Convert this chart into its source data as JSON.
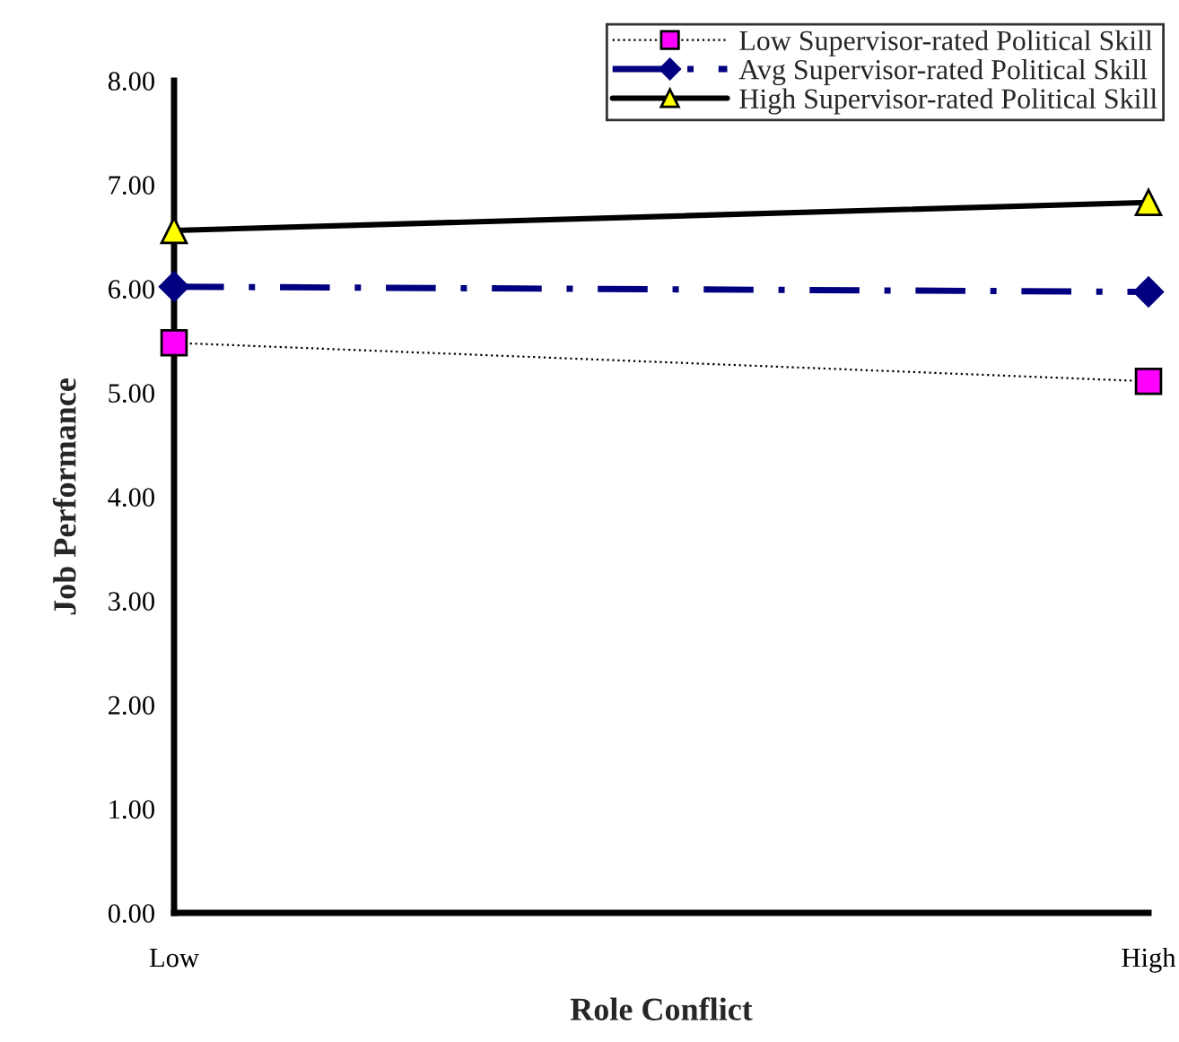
{
  "chart_data": {
    "type": "line",
    "xlabel": "Role Conflict",
    "ylabel": "Job Performance",
    "categories": [
      "Low",
      "High"
    ],
    "series": [
      {
        "name": "Low Supervisor-rated Political Skill",
        "color": "#ff00ff",
        "values": [
          5.48,
          5.11
        ],
        "marker": "square",
        "line_style": "dotted"
      },
      {
        "name": "Avg Supervisor-rated Political Skill",
        "color": "#000080",
        "values": [
          6.02,
          5.97
        ],
        "marker": "diamond",
        "line_style": "dashdot"
      },
      {
        "name": "High Supervisor-rated Political Skill",
        "color": "#ffff00",
        "values": [
          6.56,
          6.83
        ],
        "marker": "triangle",
        "line_style": "solid"
      }
    ],
    "ylim": [
      0,
      8
    ],
    "yticks": [
      {
        "value": 0,
        "label": "0.00"
      },
      {
        "value": 1,
        "label": "1.00"
      },
      {
        "value": 2,
        "label": "2.00"
      },
      {
        "value": 3,
        "label": "3.00"
      },
      {
        "value": 4,
        "label": "4.00"
      },
      {
        "value": 5,
        "label": "5.00"
      },
      {
        "value": 6,
        "label": "6.00"
      },
      {
        "value": 7,
        "label": "7.00"
      },
      {
        "value": 8,
        "label": "8.00"
      }
    ],
    "grid": false,
    "legend": "top right"
  }
}
